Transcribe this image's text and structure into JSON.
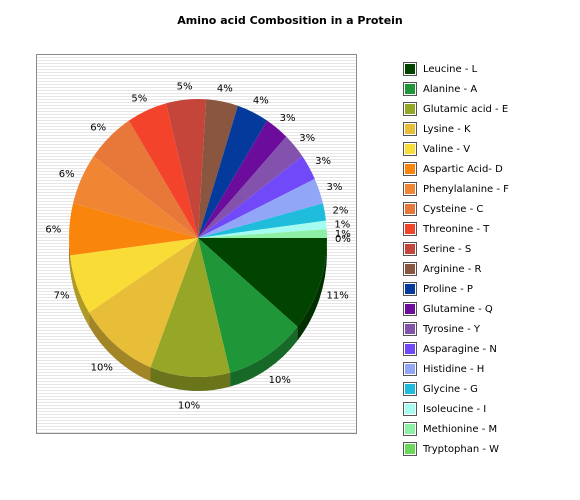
{
  "chart_data": {
    "type": "pie",
    "title": "Amino acid Combosition in a Protein",
    "legend": "right",
    "slices": [
      {
        "label": "Leucine - L",
        "value": 11,
        "display": "11%",
        "color": "#004400"
      },
      {
        "label": "Alanine - A",
        "value": 10,
        "display": "10%",
        "color": "#1f9638"
      },
      {
        "label": "Glutamic acid - E",
        "value": 10,
        "display": "10%",
        "color": "#96a626"
      },
      {
        "label": "Lysine - K",
        "value": 10,
        "display": "10%",
        "color": "#e8be38"
      },
      {
        "label": "Valine - V",
        "value": 7,
        "display": "7%",
        "color": "#fadc36"
      },
      {
        "label": "Aspartic Acid- D",
        "value": 6,
        "display": "6%",
        "color": "#fa850c"
      },
      {
        "label": "Phenylalanine - F",
        "value": 6,
        "display": "6%",
        "color": "#f08534"
      },
      {
        "label": "Cysteine - C",
        "value": 6,
        "display": "6%",
        "color": "#e8783a"
      },
      {
        "label": "Threonine - T",
        "value": 5,
        "display": "5%",
        "color": "#f4432b"
      },
      {
        "label": "Serine - S",
        "value": 5,
        "display": "5%",
        "color": "#c6453a"
      },
      {
        "label": "Arginine - R",
        "value": 4,
        "display": "4%",
        "color": "#8b5640"
      },
      {
        "label": "Proline - P",
        "value": 4,
        "display": "4%",
        "color": "#033a9c"
      },
      {
        "label": "Glutamine - Q",
        "value": 3,
        "display": "3%",
        "color": "#6c0c9c"
      },
      {
        "label": "Tyrosine - Y",
        "value": 3,
        "display": "3%",
        "color": "#8252ac"
      },
      {
        "label": "Asparagine - N",
        "value": 3,
        "display": "3%",
        "color": "#7249f8"
      },
      {
        "label": "Histidine - H",
        "value": 3,
        "display": "3%",
        "color": "#92a6f8"
      },
      {
        "label": "Glycine - G",
        "value": 2,
        "display": "2%",
        "color": "#1fbcdc"
      },
      {
        "label": "Isoleucine - I",
        "value": 1,
        "display": "1%",
        "color": "#a4fcf0"
      },
      {
        "label": "Methionine - M",
        "value": 1,
        "display": "1%",
        "color": "#8ef0a4"
      },
      {
        "label": "Tryptophan - W",
        "value": 0,
        "display": "0%",
        "color": "#6cd85a"
      }
    ]
  }
}
